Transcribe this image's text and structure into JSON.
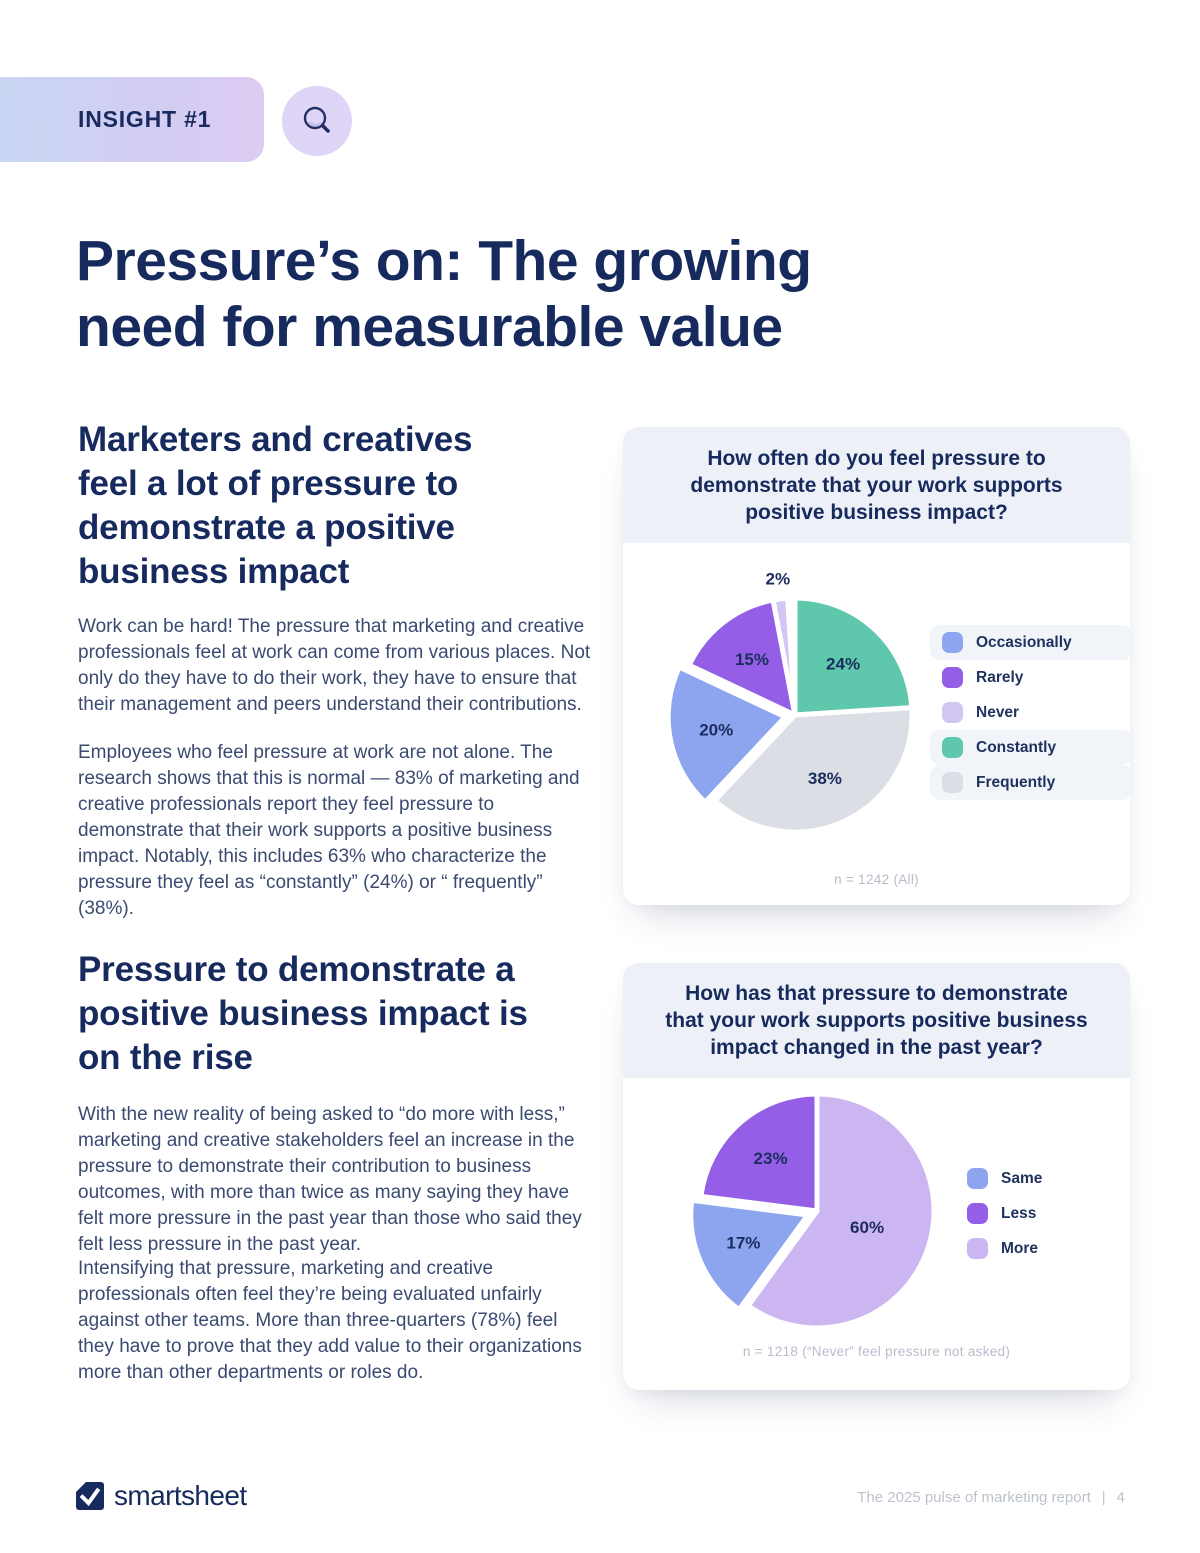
{
  "page": {
    "badge": "INSIGHT #1",
    "title_lines": [
      "Pressure’s on: The growing",
      "need for measurable value"
    ]
  },
  "sections": [
    {
      "heading_lines": [
        "Marketers and creatives",
        "feel a lot of pressure to",
        "demonstrate a positive",
        "business impact"
      ],
      "paragraphs": [
        "Work can be hard! The pressure that marketing and creative professionals feel at work can come from various places. Not only do they have to do their work, they have to ensure that their management and peers understand their contributions.",
        "Employees who feel pressure at work are not alone. The research shows that this is normal — 83% of marketing and creative professionals report they feel pressure to demonstrate that their work supports a positive business impact. Notably, this includes 63% who characterize the pressure they feel as “constantly” (24%) or “ frequently” (38%)."
      ]
    },
    {
      "heading_lines": [
        "Pressure to demonstrate a",
        "positive business impact is",
        "on the rise"
      ],
      "paragraphs": [
        "With the new reality of being asked to “do more with less,” marketing and creative stakeholders feel an increase in the pressure to demonstrate their contribution to business outcomes, with more than twice as many saying they have felt more pressure in the past year than those who said they felt less pressure in the past year.",
        "Intensifying that pressure, marketing and creative professionals often feel they’re being evaluated unfairly against other teams. More than three-quarters (78%) feel they have to prove that they add value to their organizations more than other departments or roles do."
      ]
    }
  ],
  "chart_data": [
    {
      "type": "pie",
      "title_lines": [
        "How often do you feel pressure to",
        "demonstrate that your work supports",
        "positive business impact?"
      ],
      "start_angle_deg": 0,
      "direction": "clockwise",
      "slices": [
        {
          "label": "Constantly",
          "value": 24,
          "pct_label": "24%",
          "color": "#5fc8ac"
        },
        {
          "label": "Frequently",
          "value": 38,
          "pct_label": "38%",
          "color": "#dbdee5"
        },
        {
          "label": "Occasionally",
          "value": 20,
          "pct_label": "20%",
          "color": "#8da4ef",
          "exploded": true
        },
        {
          "label": "Rarely",
          "value": 15,
          "pct_label": "15%",
          "color": "#945fe6"
        },
        {
          "label": "Never",
          "value": 2,
          "pct_label": "2%",
          "color": "#d3c5f4",
          "label_outside": true
        }
      ],
      "legend": [
        "Occasionally",
        "Rarely",
        "Never",
        "Constantly",
        "Frequently"
      ],
      "legend_position": "right",
      "note": "n = 1242 (All)"
    },
    {
      "type": "pie",
      "title_lines": [
        "How has that pressure to demonstrate",
        "that your work supports positive business",
        "impact changed in the past year?"
      ],
      "start_angle_deg": 0,
      "direction": "clockwise",
      "slices": [
        {
          "label": "More",
          "value": 60,
          "pct_label": "60%",
          "color": "#ccb6f2"
        },
        {
          "label": "Same",
          "value": 17,
          "pct_label": "17%",
          "color": "#8da4ef",
          "exploded": true
        },
        {
          "label": "Less",
          "value": 23,
          "pct_label": "23%",
          "color": "#945fe6"
        }
      ],
      "legend": [
        "Same",
        "Less",
        "More"
      ],
      "legend_position": "right",
      "note": "n = 1218 (“Never” feel pressure not asked)"
    }
  ],
  "footer": {
    "brand": "smartsheet",
    "report": "The 2025 pulse of marketing report",
    "separator": "|",
    "page_number": "4"
  }
}
